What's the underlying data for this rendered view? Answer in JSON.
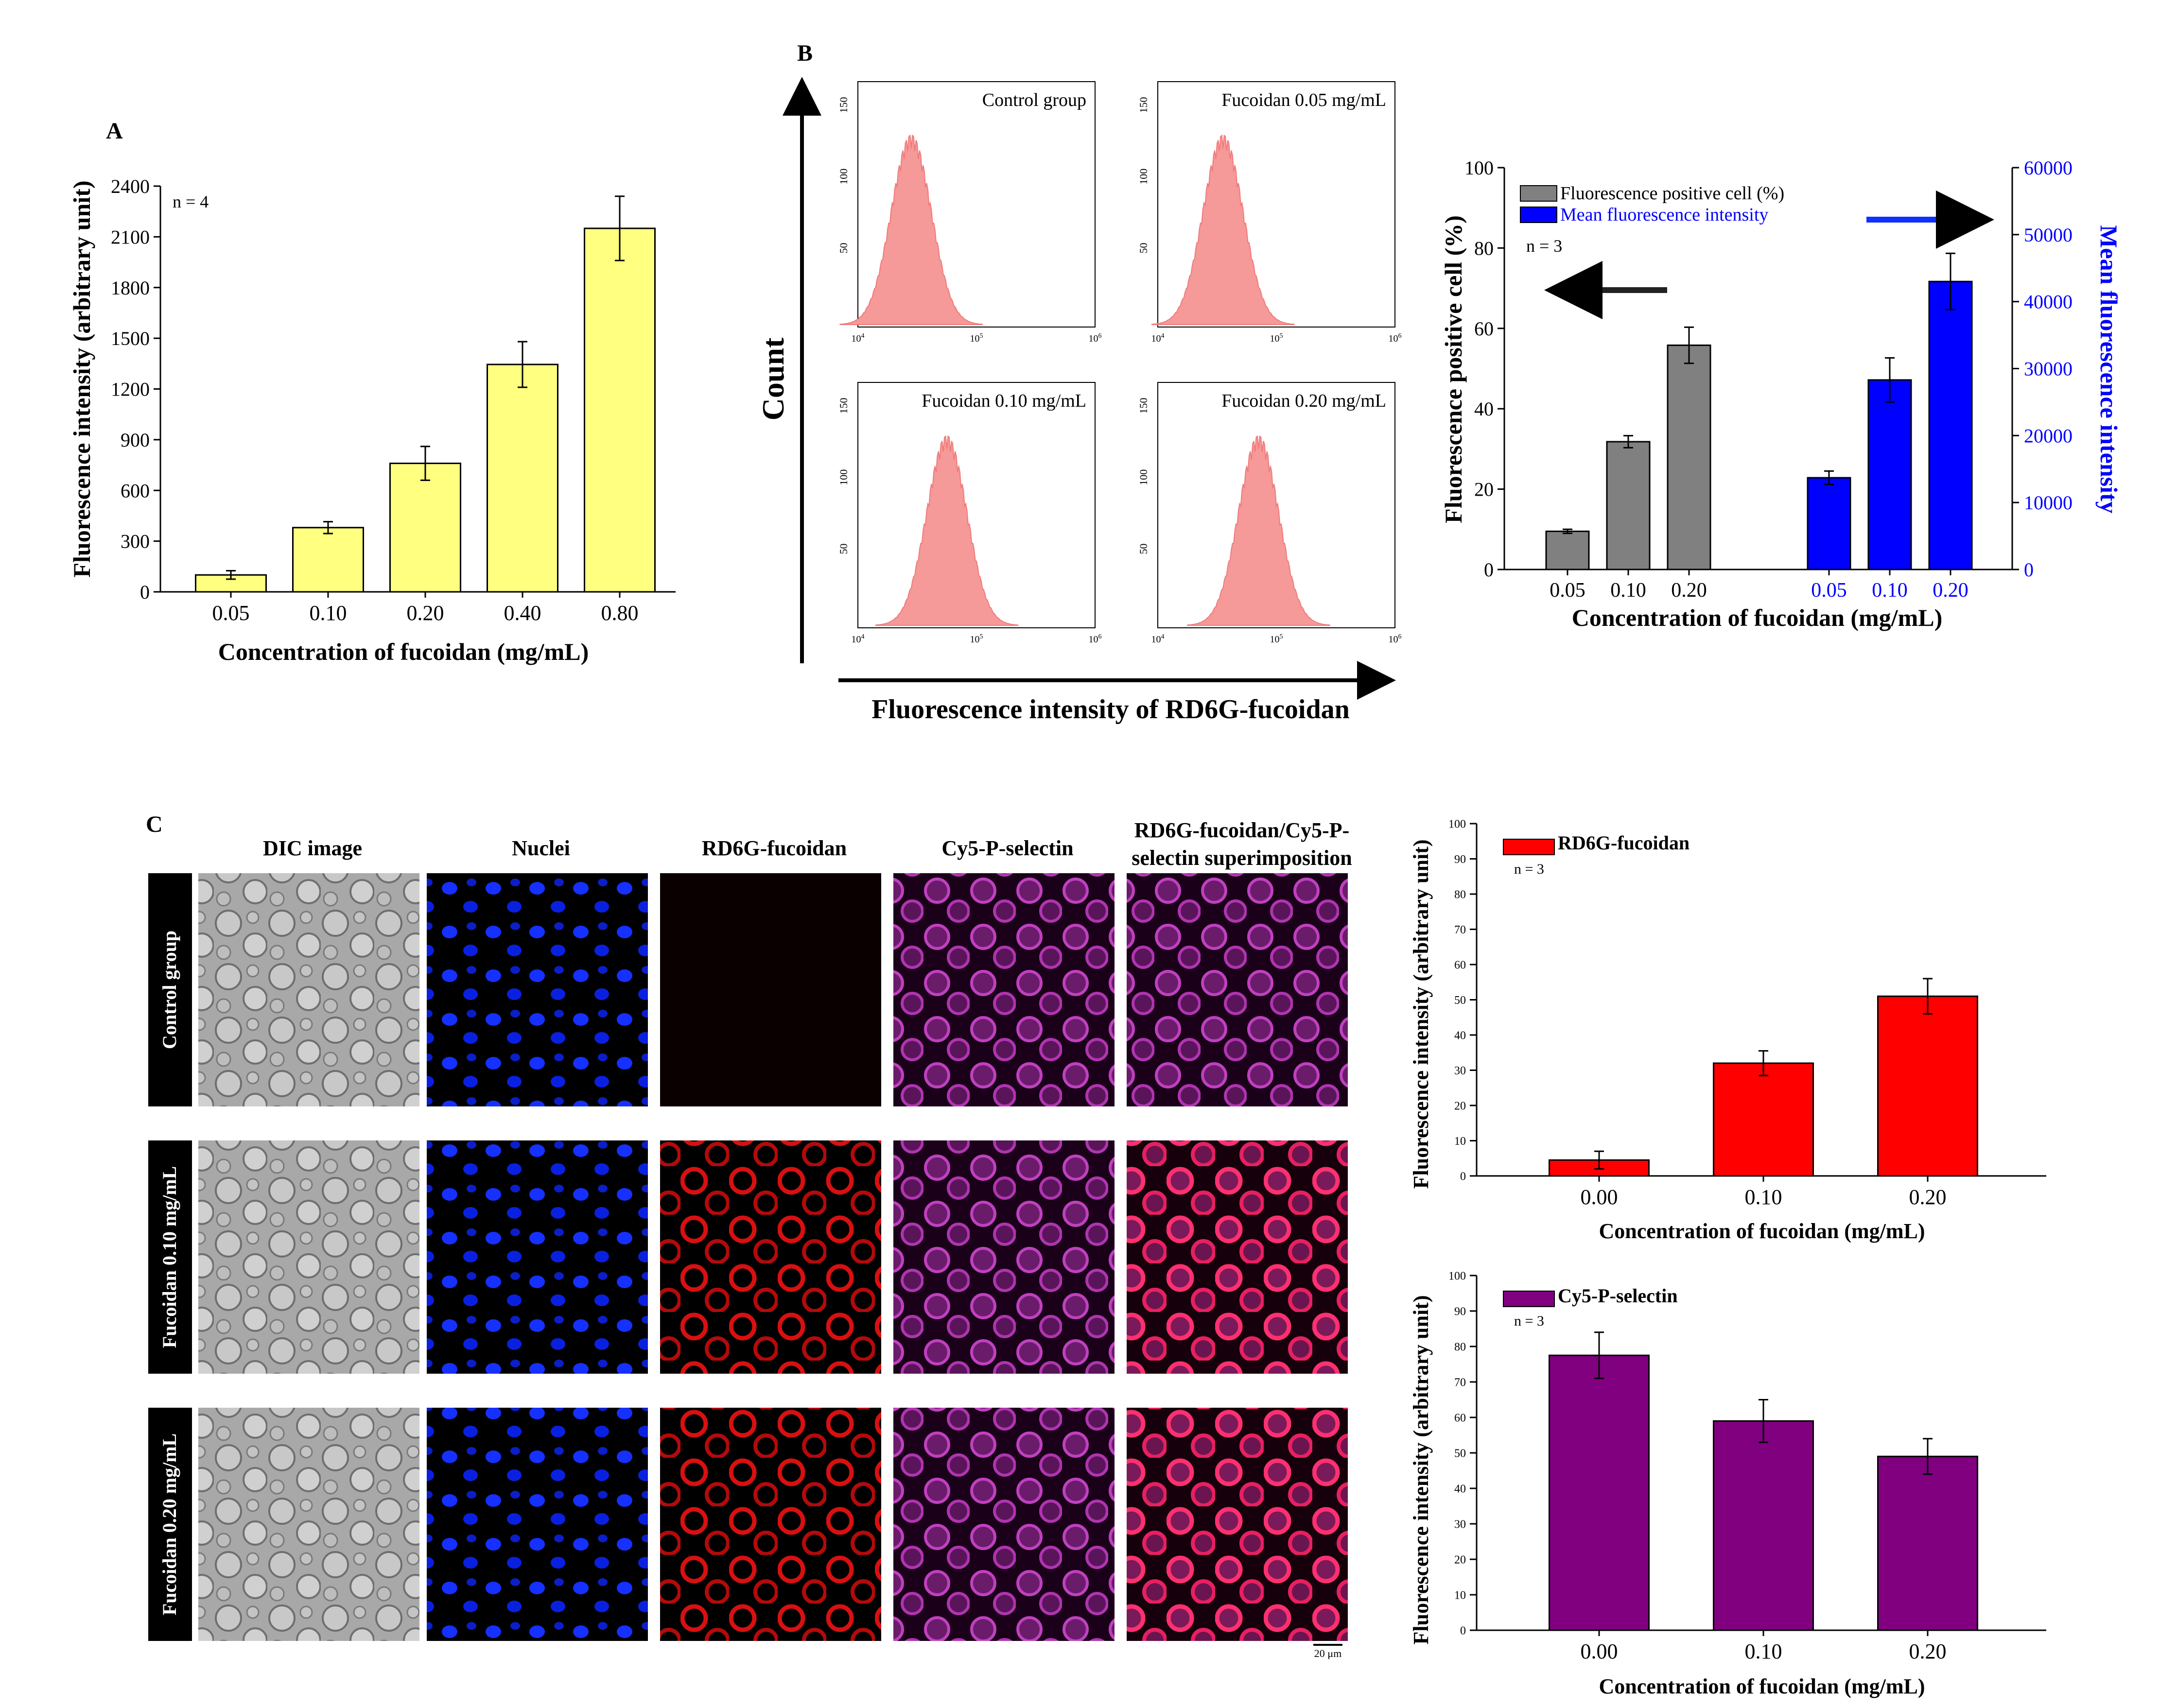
{
  "panels": {
    "A": {
      "letter": "A",
      "chart_data": {
        "type": "bar",
        "title": "",
        "n_label": "n = 4",
        "xlabel": "Concentration of fucoidan (mg/mL)",
        "ylabel": "Fluorescence intensity (arbitrary unit)",
        "categories": [
          "0.05",
          "0.10",
          "0.20",
          "0.40",
          "0.80"
        ],
        "values": [
          100,
          380,
          760,
          1345,
          2150
        ],
        "errors": [
          25,
          35,
          100,
          135,
          190
        ],
        "ylim": [
          0,
          2400
        ],
        "yticks": [
          "0",
          "300",
          "600",
          "900",
          "1200",
          "1500",
          "1800",
          "2100",
          "2400"
        ],
        "color": "#ffff80"
      }
    },
    "B": {
      "letter": "B",
      "flow_axis_y": "Count",
      "flow_axis_x": "Fluorescence intensity of RD6G-fucoidan",
      "histograms": [
        {
          "label": "Control group",
          "peak_log10": 4.45,
          "yticks": [
            "150",
            "100",
            "50",
            "0"
          ]
        },
        {
          "label": "Fucoidan 0.05 mg/mL",
          "peak_log10": 4.55,
          "yticks": [
            "150",
            "100",
            "50",
            "0"
          ]
        },
        {
          "label": "Fucoidan 0.10 mg/mL",
          "peak_log10": 4.75,
          "yticks": [
            "150",
            "100",
            "50",
            "0"
          ]
        },
        {
          "label": "Fucoidan 0.20 mg/mL",
          "peak_log10": 4.85,
          "yticks": [
            "150",
            "100",
            "50",
            "0"
          ]
        }
      ],
      "hist_xticks": [
        "10",
        "10",
        "10"
      ],
      "hist_xticks_exp": [
        "4",
        "5",
        "6"
      ],
      "hist_color": "#f59999",
      "chart_data": {
        "type": "bar",
        "n_label": "n = 3",
        "xlabel": "Concentration of fucoidan (mg/mL)",
        "ylabel_left": "Fluorescence positive cell (%)",
        "ylabel_right": "Mean fluorescence intensity",
        "categories": [
          "0.05",
          "0.10",
          "0.20"
        ],
        "series": [
          {
            "name": "Fluorescence positive cell (%)",
            "axis": "left",
            "values": [
              9.5,
              31.8,
              55.8
            ],
            "errors": [
              0.5,
              1.5,
              4.5
            ],
            "color": "#808080"
          },
          {
            "name": "Mean fluorescence intensity",
            "axis": "right",
            "values": [
              13700,
              28300,
              43000
            ],
            "errors": [
              1000,
              3300,
              4200
            ],
            "color": "#0000ff"
          }
        ],
        "ylim_left": [
          0,
          100
        ],
        "ylim_right": [
          0,
          60000
        ],
        "yticks_left": [
          "0",
          "20",
          "40",
          "60",
          "80",
          "100"
        ],
        "yticks_right": [
          "0",
          "10000",
          "20000",
          "30000",
          "40000",
          "50000",
          "60000"
        ]
      }
    },
    "C": {
      "letter": "C",
      "column_headers": [
        "DIC image",
        "Nuclei",
        "RD6G-fucoidan",
        "Cy5-P-selectin",
        "RD6G-fucoidan/Cy5-P-",
        "selectin superimposition"
      ],
      "row_labels": [
        "Control group",
        "Fucoidan 0.10 mg/mL",
        "Fucoidan 0.20 mg/mL"
      ],
      "scale_bar": "20 μm",
      "charts": [
        {
          "type": "bar",
          "legend": "RD6G-fucoidan",
          "n_label": "n = 3",
          "xlabel": "Concentration of fucoidan (mg/mL)",
          "ylabel": "Fluorescence intensity (arbitrary unit)",
          "categories": [
            "0.00",
            "0.10",
            "0.20"
          ],
          "values": [
            4.5,
            32,
            51
          ],
          "errors": [
            2.5,
            3.5,
            5
          ],
          "ylim": [
            0,
            100
          ],
          "yticks": [
            "0",
            "10",
            "20",
            "30",
            "40",
            "50",
            "60",
            "70",
            "80",
            "90",
            "100"
          ],
          "color": "#ff0000"
        },
        {
          "type": "bar",
          "legend": "Cy5-P-selectin",
          "n_label": "n = 3",
          "xlabel": "Concentration of fucoidan (mg/mL)",
          "ylabel": "Fluorescence intensity (arbitrary unit)",
          "categories": [
            "0.00",
            "0.10",
            "0.20"
          ],
          "values": [
            77.5,
            59,
            49
          ],
          "errors": [
            6.5,
            6,
            5
          ],
          "ylim": [
            0,
            100
          ],
          "yticks": [
            "0",
            "10",
            "20",
            "30",
            "40",
            "50",
            "60",
            "70",
            "80",
            "90",
            "100"
          ],
          "color": "#800080"
        }
      ]
    }
  }
}
